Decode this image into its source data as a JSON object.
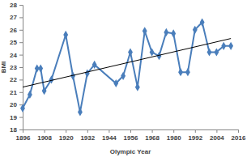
{
  "chart_data": {
    "type": "line",
    "x_label": "Olympic Year",
    "y_label": "BMI",
    "x": [
      1896,
      1900,
      1904,
      1906,
      1908,
      1912,
      1920,
      1924,
      1928,
      1932,
      1936,
      1948,
      1952,
      1956,
      1960,
      1964,
      1968,
      1972,
      1976,
      1980,
      1984,
      1988,
      1992,
      1996,
      2000,
      2004,
      2008,
      2012
    ],
    "series": [
      {
        "color": "#4a7ebb",
        "marker": "diamond",
        "line_style": "solid",
        "values": [
          19.7,
          20.8,
          22.9,
          22.9,
          21.1,
          22.0,
          25.6,
          22.3,
          19.4,
          22.5,
          23.2,
          21.7,
          22.3,
          24.2,
          21.4,
          25.9,
          24.2,
          23.9,
          25.8,
          25.7,
          22.6,
          22.6,
          26.0,
          26.6,
          24.2,
          24.2,
          24.7,
          24.7
        ]
      },
      {
        "color": "#000000",
        "marker": "none",
        "line_style": "solid",
        "x": [
          1896,
          2012
        ],
        "values": [
          21.4,
          25.3
        ]
      }
    ],
    "xlim": [
      1896,
      2016
    ],
    "xticks": [
      1896,
      1908,
      1920,
      1932,
      1944,
      1956,
      1968,
      1980,
      1992,
      2004,
      2016
    ],
    "ylim": [
      18,
      28
    ],
    "yticks": [
      18,
      19,
      20,
      21,
      22,
      23,
      24,
      25,
      26,
      27,
      28
    ],
    "grid": false
  }
}
